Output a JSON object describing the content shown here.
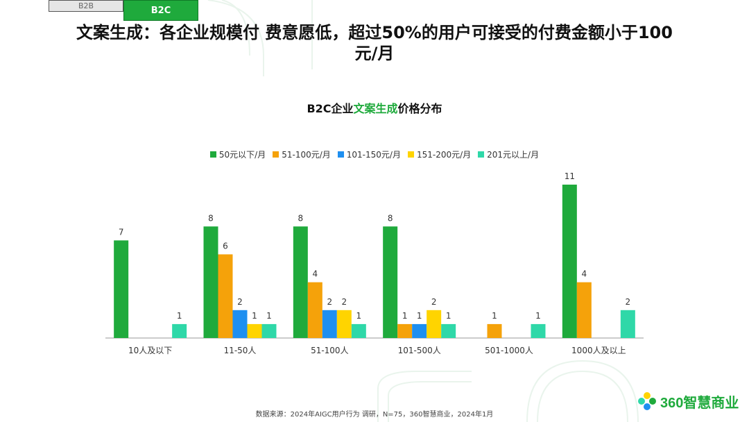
{
  "tabs": [
    {
      "label": "B2B",
      "active": false
    },
    {
      "label": "B2C",
      "active": true
    }
  ],
  "headline": {
    "line1": "文案生成：各企业规模付 费意愿低，超过50%的用户可接受的付费金额小于100",
    "line2": "元/月"
  },
  "chart_title": {
    "prefix": "B2C企业",
    "highlight": "文案生成",
    "suffix": "价格分布"
  },
  "source": "数据来源：2024年AIGC用户行为 调研，N=75，360智慧商业，2024年1月",
  "brand": {
    "name": "360智慧商业"
  },
  "colors": {
    "green": "#1faa3c",
    "orange": "#f5a20a",
    "blue": "#1e8ff0",
    "yellow": "#ffd400",
    "teal": "#2fd8a8",
    "accent": "#1faa3c"
  },
  "chart_data": {
    "type": "bar",
    "title": "B2C企业文案生成价格分布",
    "legend_position": "top",
    "grid": false,
    "ylim": [
      0,
      11
    ],
    "categories": [
      "10人及以下",
      "11-50人",
      "51-100人",
      "101-500人",
      "501-1000人",
      "1000人及以上"
    ],
    "series": [
      {
        "name": "50元以下/月",
        "color": "#1faa3c",
        "values": [
          7,
          8,
          8,
          8,
          null,
          11
        ]
      },
      {
        "name": "51-100元/月",
        "color": "#f5a20a",
        "values": [
          null,
          6,
          4,
          1,
          1,
          4
        ]
      },
      {
        "name": "101-150元/月",
        "color": "#1e8ff0",
        "values": [
          null,
          2,
          2,
          1,
          null,
          null
        ]
      },
      {
        "name": "151-200元/月",
        "color": "#ffd400",
        "values": [
          null,
          1,
          2,
          2,
          null,
          null
        ]
      },
      {
        "name": "201元以上/月",
        "color": "#2fd8a8",
        "values": [
          1,
          1,
          1,
          1,
          1,
          2
        ]
      }
    ]
  }
}
